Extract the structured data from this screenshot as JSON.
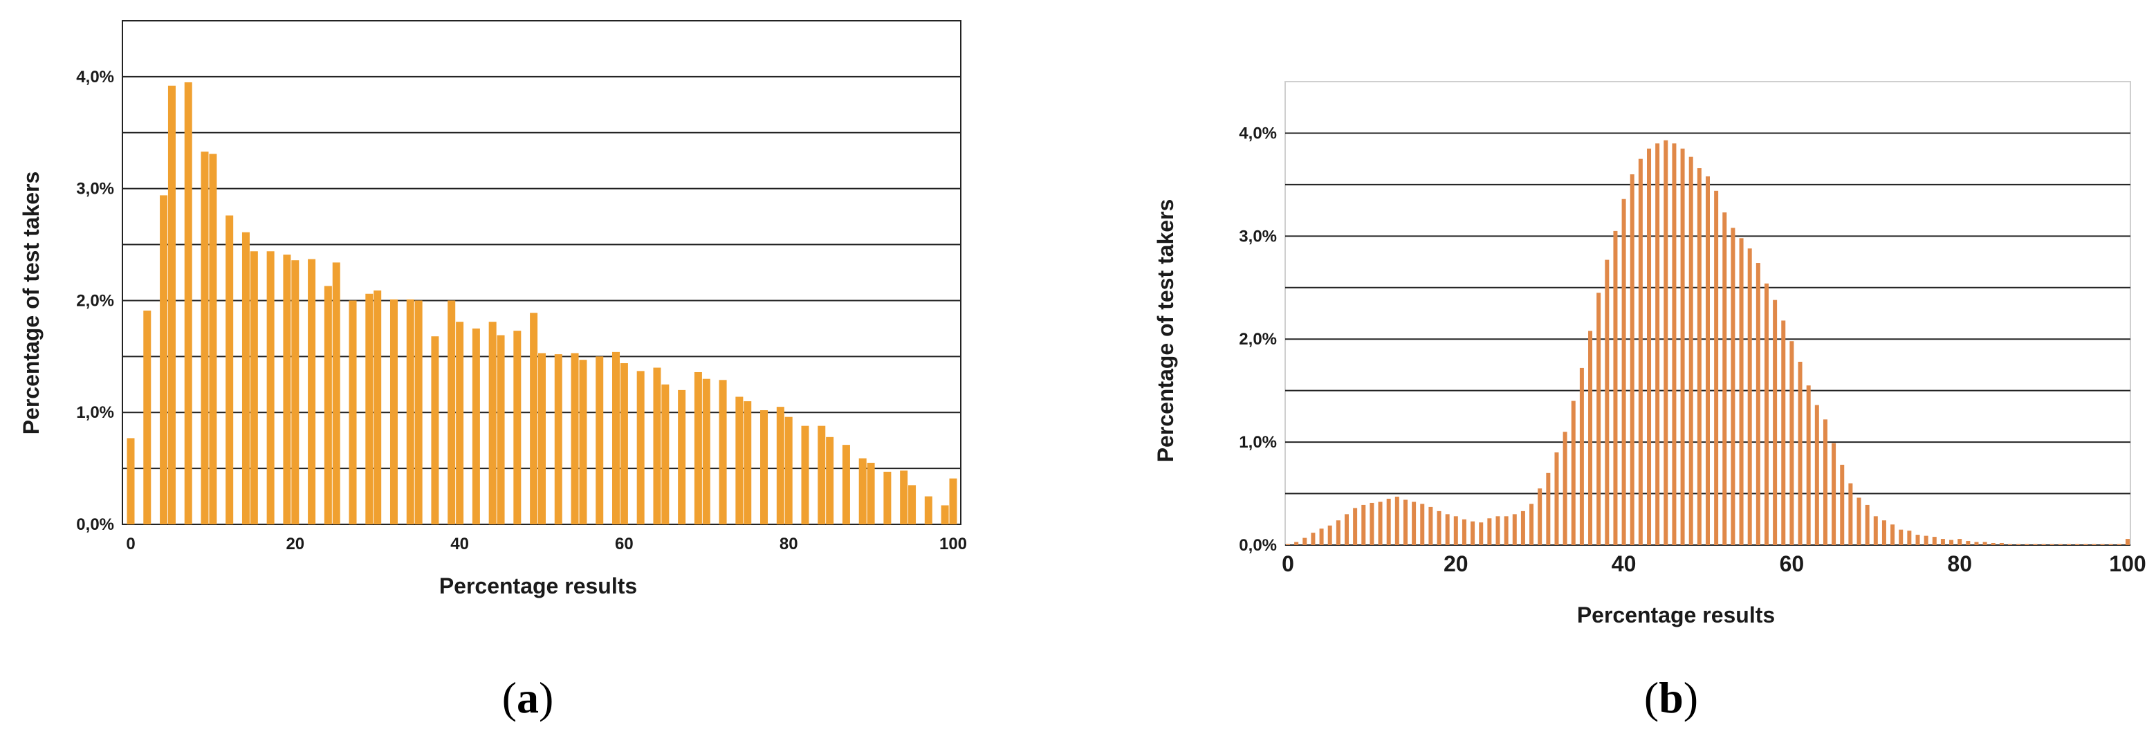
{
  "chart_data": [
    {
      "type": "bar",
      "panel_label": "a",
      "xlabel": "Percentage results",
      "ylabel": "Percentage of test takers",
      "x_ticks": [
        "0",
        "20",
        "40",
        "60",
        "80",
        "100"
      ],
      "y_ticks": [
        "0,0%",
        "1,0%",
        "2,0%",
        "3,0%",
        "4,0%"
      ],
      "ylim": [
        0,
        4.5
      ],
      "grid": "horizontal",
      "color": "#F0A030",
      "x": [
        0,
        2,
        4,
        5,
        7,
        9,
        10,
        12,
        14,
        15,
        17,
        19,
        20,
        22,
        24,
        25,
        27,
        29,
        30,
        32,
        34,
        35,
        37,
        39,
        40,
        42,
        44,
        45,
        47,
        49,
        50,
        52,
        54,
        55,
        57,
        59,
        60,
        62,
        64,
        65,
        67,
        69,
        70,
        72,
        74,
        75,
        77,
        79,
        80,
        82,
        84,
        85,
        87,
        89,
        90,
        92,
        94,
        95,
        97,
        99,
        100
      ],
      "values": [
        0.77,
        1.91,
        2.94,
        3.92,
        3.95,
        3.33,
        3.31,
        2.76,
        2.61,
        2.44,
        2.44,
        2.41,
        2.36,
        2.37,
        2.13,
        2.34,
        2.0,
        2.06,
        2.09,
        2.01,
        2.01,
        2.0,
        1.68,
        2.0,
        1.81,
        1.75,
        1.81,
        1.69,
        1.73,
        1.89,
        1.53,
        1.52,
        1.53,
        1.47,
        1.5,
        1.54,
        1.44,
        1.37,
        1.4,
        1.25,
        1.2,
        1.36,
        1.3,
        1.29,
        1.14,
        1.1,
        1.02,
        1.05,
        0.96,
        0.88,
        0.88,
        0.78,
        0.71,
        0.59,
        0.55,
        0.47,
        0.48,
        0.35,
        0.25,
        0.17,
        0.41
      ]
    },
    {
      "type": "bar",
      "panel_label": "b",
      "xlabel": "Percentage results",
      "ylabel": "Percentage of test takers",
      "x_ticks": [
        "0",
        "20",
        "40",
        "60",
        "80",
        "100"
      ],
      "y_ticks": [
        "0,0%",
        "1,0%",
        "2,0%",
        "3,0%",
        "4,0%"
      ],
      "ylim": [
        0,
        4.5
      ],
      "grid": "horizontal",
      "color": "#E08848",
      "x": [
        0,
        1,
        2,
        3,
        4,
        5,
        6,
        7,
        8,
        9,
        10,
        11,
        12,
        13,
        14,
        15,
        16,
        17,
        18,
        19,
        20,
        21,
        22,
        23,
        24,
        25,
        26,
        27,
        28,
        29,
        30,
        31,
        32,
        33,
        34,
        35,
        36,
        37,
        38,
        39,
        40,
        41,
        42,
        43,
        44,
        45,
        46,
        47,
        48,
        49,
        50,
        51,
        52,
        53,
        54,
        55,
        56,
        57,
        58,
        59,
        60,
        61,
        62,
        63,
        64,
        65,
        66,
        67,
        68,
        69,
        70,
        71,
        72,
        73,
        74,
        75,
        76,
        77,
        78,
        79,
        80,
        81,
        82,
        83,
        84,
        85,
        86,
        87,
        88,
        89,
        90,
        91,
        92,
        93,
        94,
        95,
        96,
        97,
        98,
        99,
        100
      ],
      "values": [
        0.01,
        0.03,
        0.07,
        0.12,
        0.16,
        0.19,
        0.24,
        0.3,
        0.36,
        0.39,
        0.41,
        0.42,
        0.45,
        0.47,
        0.44,
        0.42,
        0.4,
        0.37,
        0.33,
        0.3,
        0.28,
        0.25,
        0.23,
        0.22,
        0.26,
        0.28,
        0.28,
        0.3,
        0.33,
        0.4,
        0.55,
        0.7,
        0.9,
        1.1,
        1.4,
        1.72,
        2.08,
        2.45,
        2.77,
        3.05,
        3.36,
        3.6,
        3.75,
        3.85,
        3.9,
        3.93,
        3.9,
        3.85,
        3.77,
        3.66,
        3.58,
        3.44,
        3.23,
        3.08,
        2.98,
        2.88,
        2.74,
        2.54,
        2.38,
        2.18,
        1.98,
        1.78,
        1.55,
        1.36,
        1.22,
        0.99,
        0.78,
        0.6,
        0.46,
        0.39,
        0.28,
        0.24,
        0.2,
        0.15,
        0.14,
        0.1,
        0.09,
        0.08,
        0.06,
        0.05,
        0.06,
        0.04,
        0.03,
        0.03,
        0.02,
        0.02,
        0.01,
        0.01,
        0.01,
        0.01,
        0.01,
        0.01,
        0.01,
        0.01,
        0.01,
        0.01,
        0.01,
        0.01,
        0.01,
        0.01,
        0.06
      ]
    }
  ]
}
